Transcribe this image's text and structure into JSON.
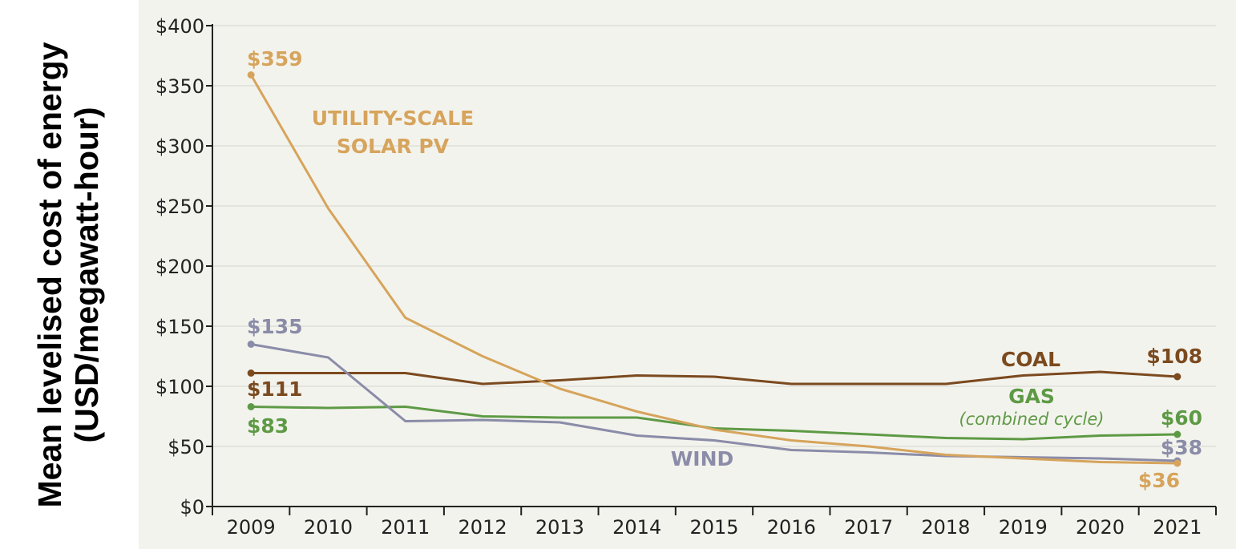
{
  "chart_data": {
    "type": "line",
    "title": "",
    "ylabel": "Mean levelised cost of energy (USD/megawatt-hour)",
    "ylabel_lines": [
      "Mean levelised cost of energy",
      "(USD/megawatt-hour)"
    ],
    "xlabel": "",
    "ylim": [
      0,
      400
    ],
    "yticks": [
      0,
      50,
      100,
      150,
      200,
      250,
      300,
      350,
      400
    ],
    "ytick_labels": [
      "$0",
      "$50",
      "$100",
      "$150",
      "$200",
      "$250",
      "$300",
      "$350",
      "$400"
    ],
    "x": [
      "2009",
      "2010",
      "2011",
      "2012",
      "2013",
      "2014",
      "2015",
      "2016",
      "2017",
      "2018",
      "2019",
      "2020",
      "2021"
    ],
    "grid": true,
    "legend": "none (series labelled directly on the plot)",
    "series": [
      {
        "key": "solar",
        "name": "UTILITY-SCALE SOLAR PV",
        "label_lines": [
          "UTILITY-SCALE",
          "SOLAR PV"
        ],
        "color": "#d6a45c",
        "values": [
          359,
          248,
          157,
          125,
          98,
          79,
          64,
          55,
          50,
          43,
          40,
          37,
          36
        ],
        "start_label": "$359",
        "end_label": "$36"
      },
      {
        "key": "wind",
        "name": "WIND",
        "label_lines": [
          "WIND"
        ],
        "color": "#8a8ca8",
        "values": [
          135,
          124,
          71,
          72,
          70,
          59,
          55,
          47,
          45,
          42,
          41,
          40,
          38
        ],
        "start_label": "$135",
        "end_label": "$38"
      },
      {
        "key": "coal",
        "name": "COAL",
        "label_lines": [
          "COAL"
        ],
        "color": "#7b4a1f",
        "values": [
          111,
          111,
          111,
          102,
          105,
          109,
          108,
          102,
          102,
          102,
          109,
          112,
          108
        ],
        "start_label": "$111",
        "end_label": "$108"
      },
      {
        "key": "gas",
        "name": "GAS",
        "label_lines": [
          "GAS"
        ],
        "sublabel": "(combined cycle)",
        "color": "#5e9a45",
        "values": [
          83,
          82,
          83,
          75,
          74,
          74,
          65,
          63,
          60,
          57,
          56,
          59,
          60
        ],
        "start_label": "$83",
        "end_label": "$60"
      }
    ]
  }
}
